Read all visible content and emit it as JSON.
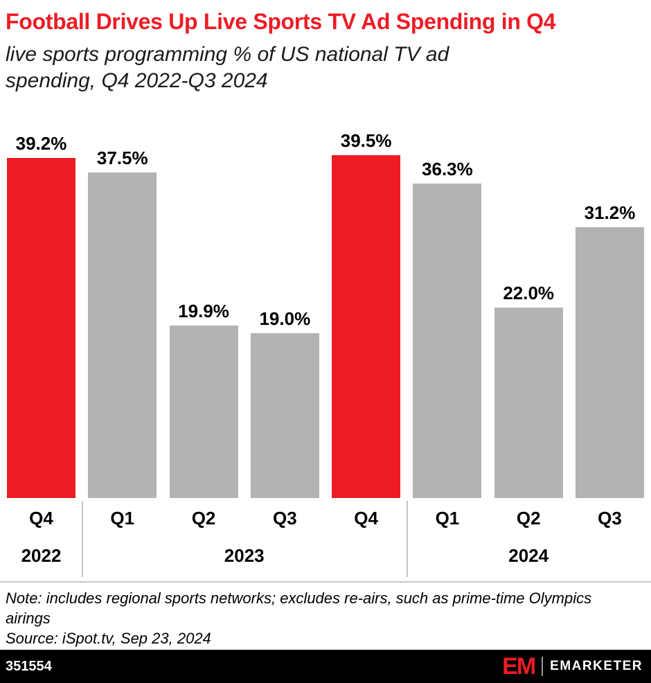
{
  "header": {
    "title": "Football Drives Up Live Sports TV Ad Spending in Q4",
    "subtitle": "live sports programming % of US national TV ad spending, Q4 2022-Q3 2024"
  },
  "chart_data": {
    "type": "bar",
    "categories": [
      "Q4",
      "Q1",
      "Q2",
      "Q3",
      "Q4",
      "Q1",
      "Q2",
      "Q3"
    ],
    "values": [
      39.2,
      37.5,
      19.9,
      19.0,
      39.5,
      36.3,
      22.0,
      31.2
    ],
    "value_labels": [
      "39.2%",
      "37.5%",
      "19.9%",
      "19.0%",
      "39.5%",
      "36.3%",
      "22.0%",
      "31.2%"
    ],
    "bar_colors": [
      "#ED1C24",
      "#B3B3B3",
      "#B3B3B3",
      "#B3B3B3",
      "#ED1C24",
      "#B3B3B3",
      "#B3B3B3",
      "#B3B3B3"
    ],
    "year_groups": [
      {
        "label": "2022",
        "span": 1
      },
      {
        "label": "2023",
        "span": 4
      },
      {
        "label": "2024",
        "span": 3
      }
    ],
    "title": "Football Drives Up Live Sports TV Ad Spending in Q4",
    "xlabel": "",
    "ylabel": "live sports programming % of US national TV ad spending",
    "ylim": [
      0,
      39.5
    ],
    "grid": false,
    "legend": "none",
    "highlight_color": "#ED1C24",
    "default_bar_color": "#B3B3B3"
  },
  "note": {
    "note_text": "Note: includes regional sports networks; excludes re-airs, such as prime-time Olympics airings",
    "source_text": "Source: iSpot.tv, Sep 23, 2024"
  },
  "footer": {
    "chart_id": "351554",
    "logo_monogram": "EM",
    "logo_wordmark": "EMARKETER"
  }
}
